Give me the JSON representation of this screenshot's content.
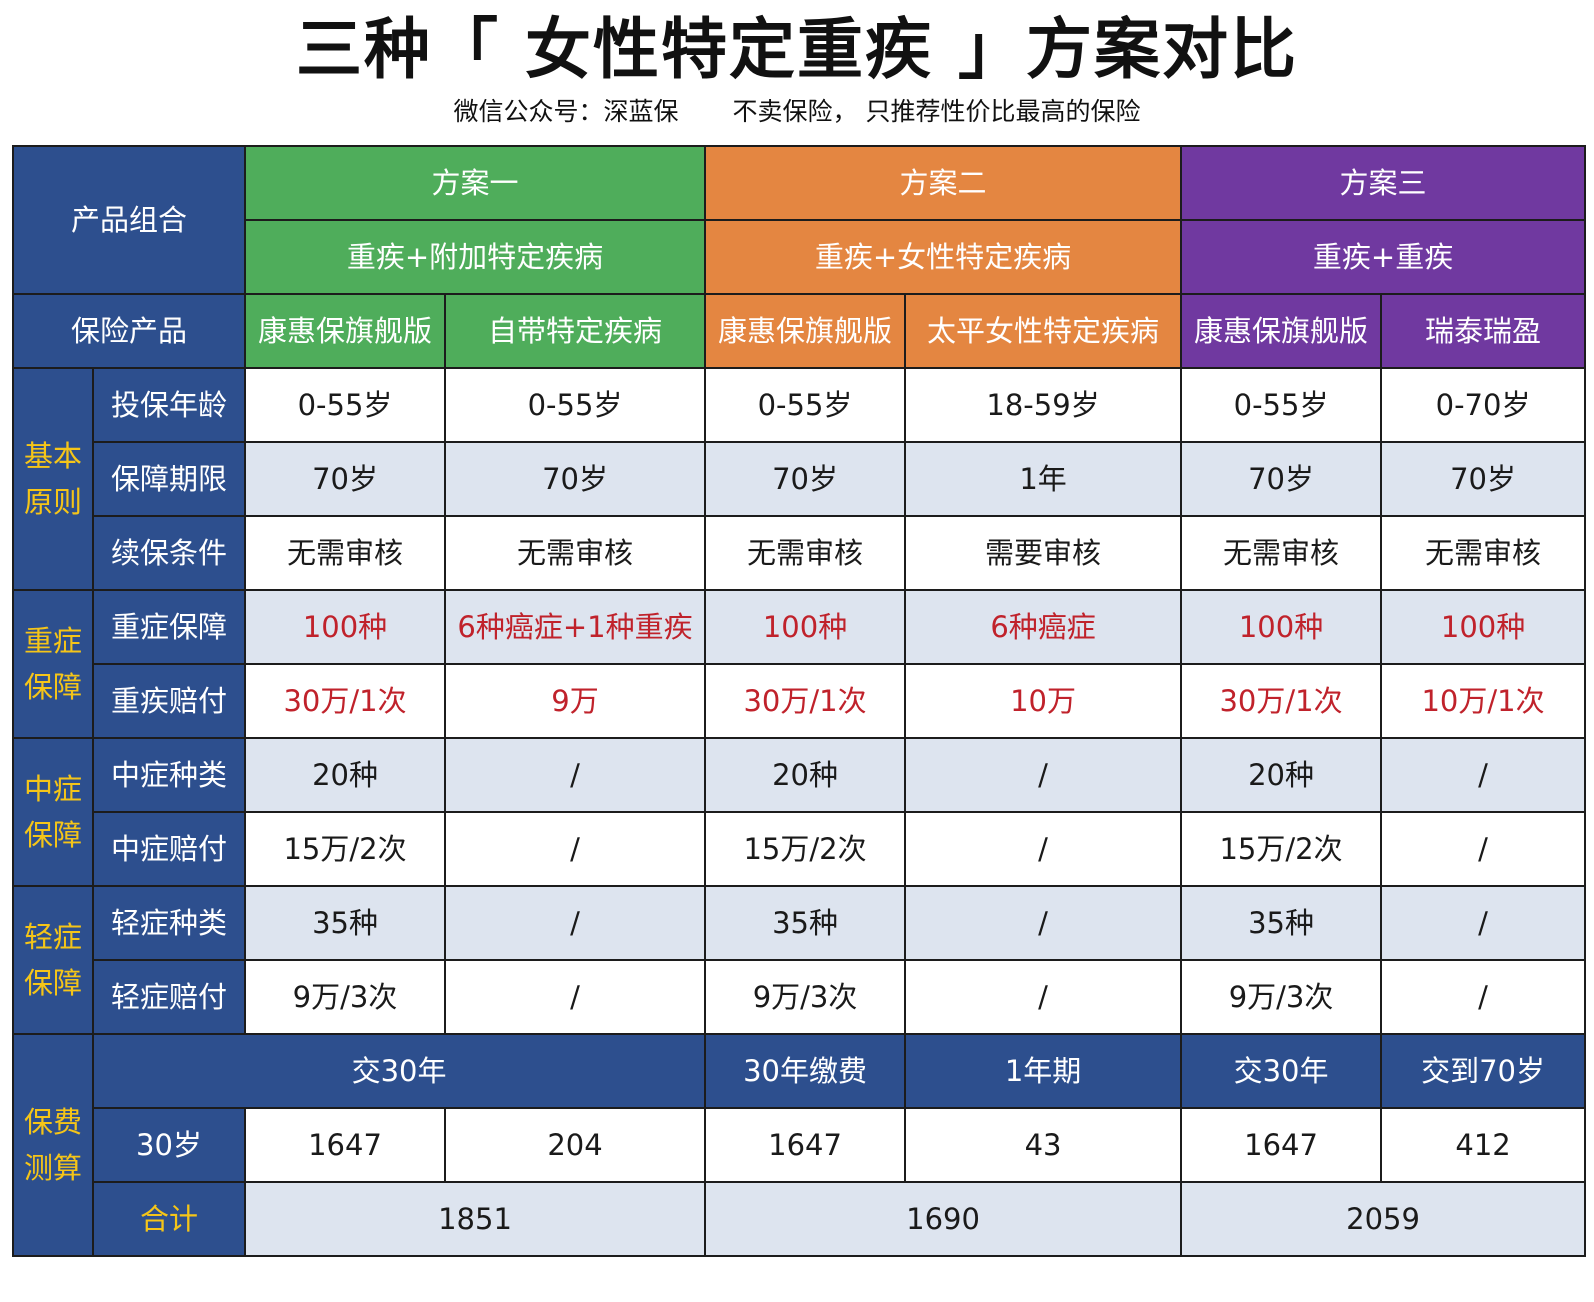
{
  "title": "三种「 女性特定重疾 」方案对比",
  "subtitle": {
    "account": "微信公众号：深蓝保",
    "slogan": "不卖保险， 只推荐性价比最高的保险"
  },
  "table": {
    "product_combo_label": "产品组合",
    "insurance_product_label": "保险产品",
    "plans": [
      {
        "name": "方案一",
        "combo": "重疾+附加特定疾病",
        "products": [
          "康惠保旗舰版",
          "自带特定疾病"
        ]
      },
      {
        "name": "方案二",
        "combo": "重疾+女性特定疾病",
        "products": [
          "康惠保旗舰版",
          "太平女性特定疾病"
        ]
      },
      {
        "name": "方案三",
        "combo": "重疾+重疾",
        "products": [
          "康惠保旗舰版",
          "瑞泰瑞盈"
        ]
      }
    ],
    "groups": {
      "basic": "基本原则",
      "critical": "重症保障",
      "moderate": "中症保障",
      "mild": "轻症保障",
      "premium": "保费测算"
    },
    "rows": [
      {
        "label": "投保年龄",
        "values": [
          "0-55岁",
          "0-55岁",
          "0-55岁",
          "18-59岁",
          "0-55岁",
          "0-70岁"
        ]
      },
      {
        "label": "保障期限",
        "values": [
          "70岁",
          "70岁",
          "70岁",
          "1年",
          "70岁",
          "70岁"
        ]
      },
      {
        "label": "续保条件",
        "values": [
          "无需审核",
          "无需审核",
          "无需审核",
          "需要审核",
          "无需审核",
          "无需审核"
        ]
      },
      {
        "label": "重症保障",
        "values": [
          "100种",
          "6种癌症+1种重疾",
          "100种",
          "6种癌症",
          "100种",
          "100种"
        ]
      },
      {
        "label": "重疾赔付",
        "values": [
          "30万/1次",
          "9万",
          "30万/1次",
          "10万",
          "30万/1次",
          "10万/1次"
        ]
      },
      {
        "label": "中症种类",
        "values": [
          "20种",
          "/",
          "20种",
          "/",
          "20种",
          "/"
        ]
      },
      {
        "label": "中症赔付",
        "values": [
          "15万/2次",
          "/",
          "15万/2次",
          "/",
          "15万/2次",
          "/"
        ]
      },
      {
        "label": "轻症种类",
        "values": [
          "35种",
          "/",
          "35种",
          "/",
          "35种",
          "/"
        ]
      },
      {
        "label": "轻症赔付",
        "values": [
          "9万/3次",
          "/",
          "9万/3次",
          "/",
          "9万/3次",
          "/"
        ]
      }
    ],
    "payment_terms": [
      "交30年",
      "30年缴费",
      "1年期",
      "交30年",
      "交到70岁"
    ],
    "age_label": "30岁",
    "premiums": [
      "1647",
      "204",
      "1647",
      "43",
      "1647",
      "412"
    ],
    "total_label": "合计",
    "totals": [
      "1851",
      "1690",
      "2059"
    ],
    "colors": {
      "navy": "#2d4f8e",
      "gold": "#f5c518",
      "green": "#4fad5b",
      "orange": "#e48641",
      "purple": "#7039a0",
      "light_row": "#dde4ef",
      "red_text": "#c0222b"
    }
  }
}
